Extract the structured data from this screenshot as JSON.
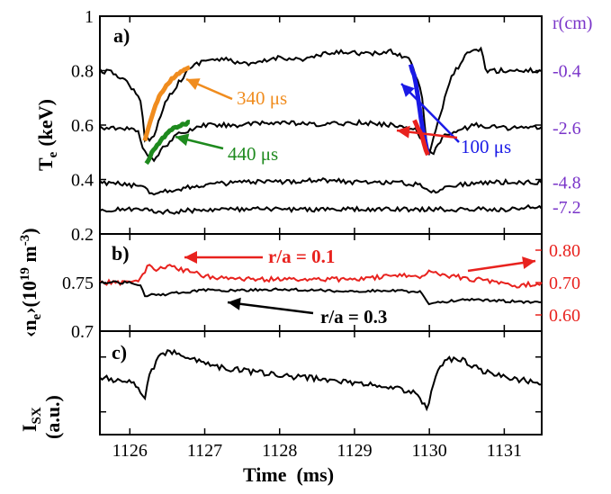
{
  "chart_data": [
    {
      "panel_label": "a)",
      "type": "line",
      "ylabel": "T",
      "ylabel_sub": "e",
      "ylabel_unit": "(keV)",
      "ylim": [
        0.2,
        1.0
      ],
      "yticks": [
        "0.2",
        "0.4",
        "0.6",
        "0.8",
        "1"
      ],
      "right_axis_title": "r(cm)",
      "right_labels": [
        "-0.4",
        "-2.6",
        "-4.8",
        "-7.2"
      ],
      "series": [
        {
          "right_label": "-0.4",
          "x": [
            1125.6,
            1125.8,
            1126.0,
            1126.15,
            1126.2,
            1126.3,
            1126.5,
            1126.8,
            1127.0,
            1127.3,
            1127.6,
            1128.0,
            1128.3,
            1128.6,
            1128.9,
            1129.2,
            1129.5,
            1129.75,
            1129.9,
            1129.98,
            1130.1,
            1130.3,
            1130.5,
            1130.7,
            1130.75,
            1131.0,
            1131.3,
            1131.5
          ],
          "y": [
            0.8,
            0.79,
            0.75,
            0.68,
            0.55,
            0.55,
            0.7,
            0.81,
            0.84,
            0.84,
            0.82,
            0.85,
            0.84,
            0.86,
            0.87,
            0.86,
            0.87,
            0.84,
            0.72,
            0.48,
            0.6,
            0.78,
            0.86,
            0.88,
            0.8,
            0.8,
            0.8,
            0.8
          ]
        },
        {
          "right_label": "-2.6",
          "x": [
            1125.6,
            1125.9,
            1126.1,
            1126.2,
            1126.3,
            1126.6,
            1127.0,
            1127.5,
            1128.0,
            1128.5,
            1129.0,
            1129.5,
            1129.8,
            1129.95,
            1130.05,
            1130.2,
            1130.6,
            1131.0,
            1131.5
          ],
          "y": [
            0.59,
            0.59,
            0.58,
            0.5,
            0.47,
            0.56,
            0.6,
            0.6,
            0.61,
            0.6,
            0.61,
            0.6,
            0.59,
            0.52,
            0.5,
            0.56,
            0.6,
            0.59,
            0.59
          ]
        },
        {
          "right_label": "-4.8",
          "x": [
            1125.6,
            1126.0,
            1126.2,
            1126.3,
            1126.5,
            1127.0,
            1127.5,
            1128.0,
            1128.5,
            1129.0,
            1129.5,
            1129.9,
            1130.0,
            1130.1,
            1130.3,
            1130.8,
            1131.5
          ],
          "y": [
            0.39,
            0.38,
            0.37,
            0.35,
            0.36,
            0.38,
            0.39,
            0.39,
            0.4,
            0.39,
            0.39,
            0.38,
            0.35,
            0.36,
            0.38,
            0.39,
            0.39
          ]
        },
        {
          "right_label": "-7.2",
          "x": [
            1125.6,
            1126.2,
            1126.5,
            1127.0,
            1127.5,
            1128.0,
            1128.5,
            1129.0,
            1129.5,
            1130.0,
            1130.5,
            1131.0,
            1131.5
          ],
          "y": [
            0.29,
            0.29,
            0.28,
            0.29,
            0.29,
            0.29,
            0.29,
            0.29,
            0.29,
            0.29,
            0.29,
            0.29,
            0.3
          ]
        }
      ],
      "fits": [
        {
          "label": "340 μs",
          "color": "#f08c1e",
          "x": [
            1126.2,
            1126.3,
            1126.4,
            1126.5,
            1126.6,
            1126.7,
            1126.8
          ],
          "y": [
            0.54,
            0.64,
            0.71,
            0.75,
            0.78,
            0.8,
            0.81
          ]
        },
        {
          "label": "440 μs",
          "color": "#1e8a1e",
          "x": [
            1126.22,
            1126.3,
            1126.4,
            1126.5,
            1126.6,
            1126.7,
            1126.8
          ],
          "y": [
            0.46,
            0.5,
            0.54,
            0.57,
            0.59,
            0.6,
            0.61
          ]
        },
        {
          "label": "100 μs",
          "color": "#1a1ae6",
          "x": [
            1129.75,
            1129.8,
            1129.85,
            1129.9,
            1129.95,
            1129.98
          ],
          "y": [
            0.82,
            0.78,
            0.7,
            0.6,
            0.53,
            0.49
          ]
        },
        {
          "label": "",
          "color": "#e8221e",
          "x": [
            1129.8,
            1129.85,
            1129.9,
            1129.95,
            1129.98
          ],
          "y": [
            0.62,
            0.59,
            0.56,
            0.51,
            0.49
          ]
        }
      ],
      "annotations": [
        {
          "text": "340 μs",
          "color": "#f08c1e"
        },
        {
          "text": "440 μs",
          "color": "#1e8a1e"
        },
        {
          "text": "100 μs",
          "color": "#1a1ae6"
        }
      ]
    },
    {
      "panel_label": "b)",
      "type": "line",
      "ylabel": "‹n",
      "ylabel_sub": "e",
      "ylabel_rest": "›(10",
      "ylabel_sup": "19",
      "ylabel_unit": " m",
      "ylabel_unit_sup": "-3",
      "ylabel_close": ")",
      "ylim_left": [
        0.7,
        0.8
      ],
      "yticks_left": [
        "0.7",
        "0.75"
      ],
      "ylim_right": [
        0.55,
        0.85
      ],
      "yticks_right": [
        "0.60",
        "0.70",
        "0.80"
      ],
      "series": [
        {
          "name": "r/a = 0.1",
          "color": "#e8221e",
          "axis": "right",
          "x": [
            1125.6,
            1126.0,
            1126.15,
            1126.25,
            1126.35,
            1126.5,
            1126.7,
            1127.0,
            1127.5,
            1128.0,
            1128.5,
            1129.0,
            1129.5,
            1129.9,
            1130.0,
            1130.1,
            1130.3,
            1130.6,
            1131.0,
            1131.2,
            1131.5
          ],
          "y": [
            0.7,
            0.7,
            0.71,
            0.76,
            0.74,
            0.75,
            0.74,
            0.72,
            0.71,
            0.71,
            0.71,
            0.71,
            0.72,
            0.72,
            0.74,
            0.73,
            0.72,
            0.71,
            0.7,
            0.69,
            0.7
          ]
        },
        {
          "name": "r/a = 0.3",
          "color": "#000000",
          "axis": "left",
          "x": [
            1125.6,
            1126.0,
            1126.15,
            1126.2,
            1126.4,
            1126.7,
            1127.0,
            1127.5,
            1128.0,
            1128.5,
            1129.0,
            1129.5,
            1129.9,
            1130.0,
            1130.2,
            1130.5,
            1131.0,
            1131.5
          ],
          "y": [
            0.75,
            0.75,
            0.748,
            0.737,
            0.737,
            0.74,
            0.742,
            0.742,
            0.743,
            0.742,
            0.741,
            0.742,
            0.74,
            0.728,
            0.73,
            0.733,
            0.731,
            0.729
          ]
        }
      ],
      "annotations": [
        {
          "text": "r/a = 0.1",
          "color": "#e8221e"
        },
        {
          "text": "r/a = 0.3",
          "color": "#000000"
        }
      ]
    },
    {
      "panel_label": "c)",
      "type": "line",
      "ylabel": "I",
      "ylabel_sub": "SX",
      "ylabel_unit": "(a.u.)",
      "series": [
        {
          "x": [
            1125.6,
            1125.9,
            1126.1,
            1126.2,
            1126.25,
            1126.4,
            1126.6,
            1126.8,
            1127.0,
            1127.5,
            1128.0,
            1128.5,
            1129.0,
            1129.5,
            1129.8,
            1129.98,
            1130.05,
            1130.2,
            1130.4,
            1130.7,
            1131.0,
            1131.3,
            1131.5
          ],
          "y": [
            0.55,
            0.52,
            0.48,
            0.35,
            0.55,
            0.78,
            0.8,
            0.74,
            0.68,
            0.62,
            0.57,
            0.54,
            0.5,
            0.46,
            0.4,
            0.25,
            0.5,
            0.72,
            0.74,
            0.62,
            0.55,
            0.52,
            0.5
          ]
        }
      ]
    }
  ],
  "xaxis": {
    "label": "Time  (ms)",
    "xlim": [
      1125.6,
      1131.5
    ],
    "ticks": [
      "1126",
      "1127",
      "1128",
      "1129",
      "1130",
      "1131"
    ]
  }
}
